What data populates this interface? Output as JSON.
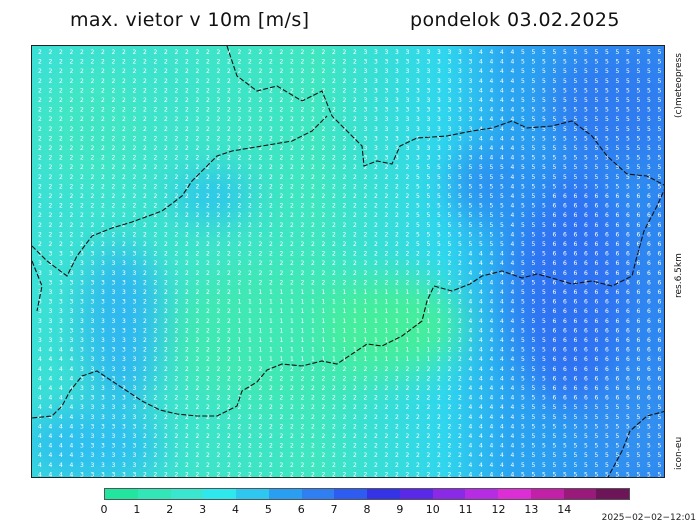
{
  "header": {
    "title": "max. vietor v 10m [m/s]",
    "date": "pondelok 03.02.2025"
  },
  "side_labels": {
    "credit": "(c)meteopress",
    "resolution": "res.6.5km",
    "model": "icon-eu"
  },
  "colorbar": {
    "ticks": [
      "0",
      "1",
      "2",
      "3",
      "4",
      "5",
      "6",
      "7",
      "8",
      "9",
      "10",
      "11",
      "12",
      "13",
      "14"
    ],
    "colors": [
      "#22e6a0",
      "#33e6b8",
      "#3be6cf",
      "#2ee8ee",
      "#2dc7ef",
      "#2a9ff2",
      "#2f7ff2",
      "#2f5cf0",
      "#3434e6",
      "#5a29e8",
      "#8a2ae6",
      "#b62be4",
      "#dd2ed6",
      "#c220a6",
      "#9a1a7c",
      "#6e1458"
    ]
  },
  "timestamp": "2025−02−02−12:01"
}
